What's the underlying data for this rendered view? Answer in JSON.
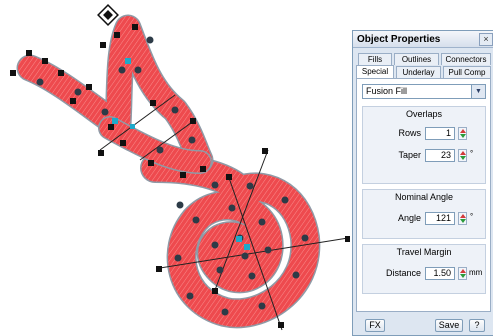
{
  "canvas": {
    "description_icon": "diamond-selection-handle-icon",
    "stitch_color": "#ee4a4e",
    "outline_color": "#8f9aa6"
  },
  "panel": {
    "title": "Object Properties",
    "close_glyph": "×",
    "tabs_row1": [
      "Fills",
      "Outlines",
      "Connectors"
    ],
    "tabs_row2": [
      "Special",
      "Underlay",
      "Pull Comp"
    ],
    "active_tab": "Special",
    "fill_type": "Fusion Fill",
    "overlaps": {
      "title": "Overlaps",
      "rows_label": "Rows",
      "rows_value": "1",
      "taper_label": "Taper",
      "taper_value": "23",
      "taper_unit": "°"
    },
    "nominal_angle": {
      "title": "Nominal Angle",
      "angle_label": "Angle",
      "angle_value": "121",
      "angle_unit": "°"
    },
    "travel_margin": {
      "title": "Travel Margin",
      "distance_label": "Distance",
      "distance_value": "1.50",
      "distance_unit": "mm"
    },
    "buttons": {
      "fx": "FX",
      "save": "Save",
      "help": "?"
    }
  }
}
